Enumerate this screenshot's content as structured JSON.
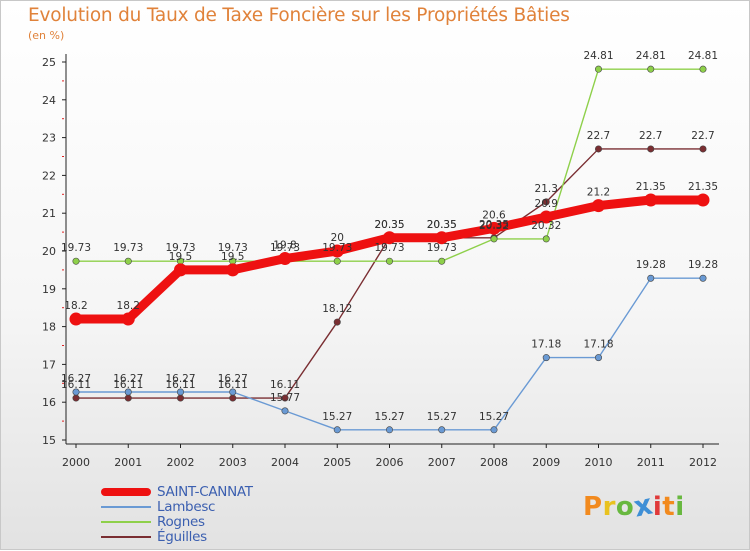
{
  "title": "Evolution du Taux de Taxe Foncière sur les Propriétés Bâties",
  "subtitle": "(en %)",
  "chart_data": {
    "type": "line",
    "title": "Evolution du Taux de Taxe Foncière sur les Propriétés Bâties",
    "ylabel": "(en %)",
    "xlabel": "",
    "ylim": [
      15,
      25
    ],
    "yticks": [
      15,
      16,
      17,
      18,
      19,
      20,
      21,
      22,
      23,
      24,
      25
    ],
    "categories": [
      "2000",
      "2001",
      "2002",
      "2003",
      "2004",
      "2005",
      "2006",
      "2007",
      "2008",
      "2009",
      "2010",
      "2011",
      "2012"
    ],
    "grid": false,
    "legend": "bottom-left",
    "series": [
      {
        "name": "SAINT-CANNAT",
        "color": "#ee1111",
        "labels": [
          "18.2",
          "18.2",
          "19.5",
          "19.5",
          "19.8",
          "20",
          "20.35",
          "20.35",
          "20.6",
          "20.9",
          "21.2",
          "21.35",
          "21.35"
        ],
        "values": [
          18.2,
          18.2,
          19.5,
          19.5,
          19.8,
          20,
          20.35,
          20.35,
          20.6,
          20.9,
          21.2,
          21.35,
          21.35
        ]
      },
      {
        "name": "Lambesc",
        "color": "#6a9ad4",
        "labels": [
          "16.27",
          "16.27",
          "16.27",
          "16.27",
          "15.77",
          "15.27",
          "15.27",
          "15.27",
          "15.27",
          "17.18",
          "17.18",
          "19.28",
          "19.28"
        ],
        "values": [
          16.27,
          16.27,
          16.27,
          16.27,
          15.77,
          15.27,
          15.27,
          15.27,
          15.27,
          17.18,
          17.18,
          19.28,
          19.28
        ]
      },
      {
        "name": "Rognes",
        "color": "#8ed04a",
        "labels": [
          "19.73",
          "19.73",
          "19.73",
          "19.73",
          "19.73",
          "19.73",
          "19.73",
          "19.73",
          "20.32",
          "20.32",
          "24.81",
          "24.81",
          "24.81"
        ],
        "values": [
          19.73,
          19.73,
          19.73,
          19.73,
          19.73,
          19.73,
          19.73,
          19.73,
          20.32,
          20.32,
          24.81,
          24.81,
          24.81
        ]
      },
      {
        "name": "Éguilles",
        "color": "#7a2e32",
        "labels": [
          "16.11",
          "16.11",
          "16.11",
          "16.11",
          "16.11",
          "18.12",
          "20.35",
          "20.35",
          "20.35",
          "21.3",
          "22.7",
          "22.7",
          "22.7"
        ],
        "values": [
          16.11,
          16.11,
          16.11,
          16.11,
          16.11,
          18.12,
          20.35,
          20.35,
          20.35,
          21.3,
          22.7,
          22.7,
          22.7
        ]
      }
    ]
  },
  "brand": {
    "letters": [
      {
        "ch": "P",
        "color": "#f28a1e"
      },
      {
        "ch": "r",
        "color": "#e9c21f"
      },
      {
        "ch": "o",
        "color": "#68b83f"
      },
      {
        "ch": "x",
        "color": "#3f8fd6"
      },
      {
        "ch": "i",
        "color": "#e03a3a"
      },
      {
        "ch": "t",
        "color": "#f28a1e"
      },
      {
        "ch": "i",
        "color": "#68b83f"
      }
    ]
  }
}
